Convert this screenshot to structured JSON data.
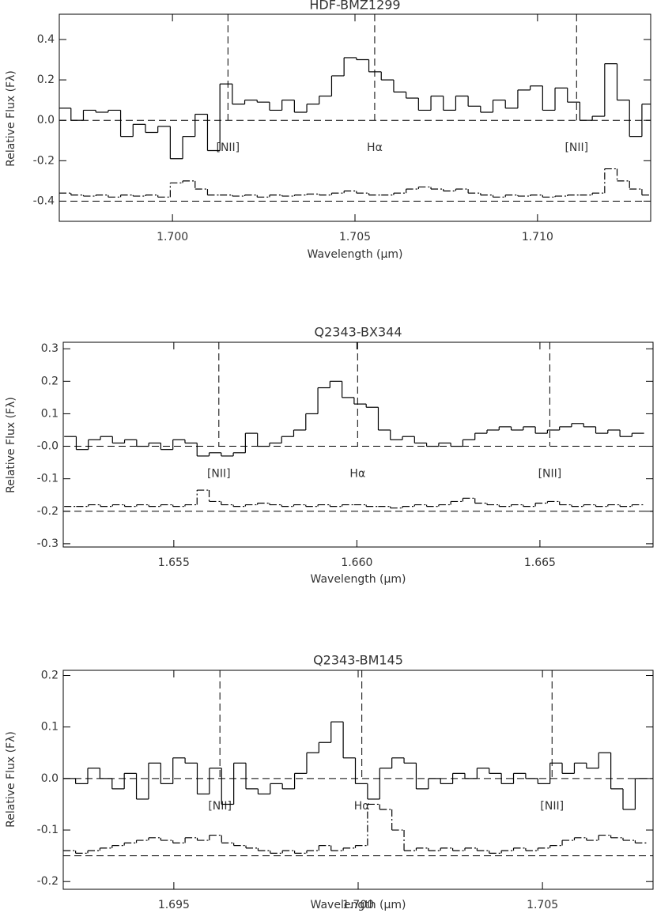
{
  "chart_data": [
    {
      "type": "line",
      "title": "HDF-BMZ1299",
      "xlabel": "Wavelength (μm)",
      "ylabel": "Relative Flux (Fλ)",
      "xlim": [
        1.6969,
        1.7131
      ],
      "ylim": [
        -0.5,
        0.525
      ],
      "xticks": [
        {
          "value": 1.7,
          "label": "1.700"
        },
        {
          "value": 1.705,
          "label": "1.705"
        },
        {
          "value": 1.71,
          "label": "1.710"
        }
      ],
      "yticks": [
        -0.4,
        -0.2,
        {
          "value": 0,
          "label": "0.0"
        },
        0.2,
        0.4
      ],
      "drawstyle": "steps",
      "x": [
        1.69705,
        1.69739,
        1.69773,
        1.69807,
        1.69841,
        1.69875,
        1.69909,
        1.69943,
        1.69977,
        1.70011,
        1.70045,
        1.70079,
        1.70113,
        1.70147,
        1.70181,
        1.70215,
        1.70249,
        1.70283,
        1.70317,
        1.70351,
        1.70385,
        1.70419,
        1.70453,
        1.70487,
        1.70521,
        1.70555,
        1.70589,
        1.70623,
        1.70657,
        1.70691,
        1.70725,
        1.70759,
        1.70793,
        1.70827,
        1.70861,
        1.70895,
        1.70929,
        1.70963,
        1.70997,
        1.71031,
        1.71065,
        1.71099,
        1.71133,
        1.71167,
        1.71201,
        1.71235,
        1.71269,
        1.71303
      ],
      "series": [
        {
          "color": "#000000",
          "line_style": "solid",
          "values": [
            0.06,
            0.0,
            0.05,
            0.04,
            0.05,
            -0.08,
            -0.02,
            -0.06,
            -0.03,
            -0.19,
            -0.08,
            0.03,
            -0.15,
            0.18,
            0.08,
            0.1,
            0.09,
            0.05,
            0.1,
            0.04,
            0.08,
            0.12,
            0.22,
            0.31,
            0.3,
            0.24,
            0.2,
            0.14,
            0.11,
            0.05,
            0.12,
            0.05,
            0.12,
            0.07,
            0.04,
            0.1,
            0.06,
            0.15,
            0.17,
            0.05,
            0.16,
            0.09,
            0.0,
            0.02,
            0.28,
            0.1,
            -0.08,
            0.08
          ]
        },
        {
          "color": "#000000",
          "line_style": "dashdot",
          "values": [
            -0.36,
            -0.37,
            -0.375,
            -0.37,
            -0.38,
            -0.37,
            -0.375,
            -0.37,
            -0.38,
            -0.31,
            -0.3,
            -0.34,
            -0.37,
            -0.37,
            -0.375,
            -0.37,
            -0.38,
            -0.37,
            -0.375,
            -0.37,
            -0.365,
            -0.37,
            -0.36,
            -0.35,
            -0.36,
            -0.37,
            -0.37,
            -0.36,
            -0.34,
            -0.33,
            -0.34,
            -0.35,
            -0.34,
            -0.36,
            -0.37,
            -0.38,
            -0.37,
            -0.375,
            -0.37,
            -0.38,
            -0.375,
            -0.37,
            -0.37,
            -0.36,
            -0.24,
            -0.3,
            -0.34,
            -0.37
          ]
        }
      ],
      "reference_lines": {
        "line_style": "dashed",
        "values": [
          0,
          -0.4
        ]
      },
      "markers": [
        {
          "x": 1.70152,
          "label": "[NII]"
        },
        {
          "x": 1.70554,
          "label": "Hα"
        },
        {
          "x": 1.71107,
          "label": "[NII]"
        }
      ]
    },
    {
      "type": "line",
      "title": "Q2343-BX344",
      "xlabel": "Wavelength (μm)",
      "ylabel": "Relative Flux (Fλ)",
      "xlim": [
        1.65198,
        1.66809
      ],
      "ylim": [
        -0.31,
        0.32
      ],
      "xticks": [
        {
          "value": 1.655,
          "label": "1.655"
        },
        {
          "value": 1.66,
          "label": "1.660"
        },
        {
          "value": 1.665,
          "label": "1.665"
        }
      ],
      "yticks": [
        -0.3,
        -0.2,
        -0.1,
        {
          "value": 0,
          "label": "-0.0"
        },
        0.1,
        0.2,
        0.3
      ],
      "drawstyle": "steps",
      "x": [
        1.65217,
        1.6525,
        1.65283,
        1.65316,
        1.65349,
        1.65382,
        1.65415,
        1.65448,
        1.65481,
        1.65514,
        1.65547,
        1.6558,
        1.65613,
        1.65646,
        1.65679,
        1.65712,
        1.65745,
        1.65778,
        1.65811,
        1.65844,
        1.65877,
        1.6591,
        1.65943,
        1.65976,
        1.66009,
        1.66042,
        1.66075,
        1.66108,
        1.66141,
        1.66174,
        1.66207,
        1.6624,
        1.66273,
        1.66306,
        1.66339,
        1.66372,
        1.66405,
        1.66438,
        1.66471,
        1.66504,
        1.66537,
        1.6657,
        1.66603,
        1.66636,
        1.66669,
        1.66702,
        1.66735,
        1.66768
      ],
      "series": [
        {
          "color": "#000000",
          "line_style": "solid",
          "values": [
            0.03,
            -0.01,
            0.02,
            0.03,
            0.01,
            0.02,
            0.0,
            0.01,
            -0.01,
            0.02,
            0.01,
            -0.03,
            -0.02,
            -0.03,
            -0.02,
            0.04,
            0.0,
            0.01,
            0.03,
            0.05,
            0.1,
            0.18,
            0.2,
            0.15,
            0.13,
            0.12,
            0.05,
            0.02,
            0.03,
            0.01,
            0.0,
            0.01,
            0.0,
            0.02,
            0.04,
            0.05,
            0.06,
            0.05,
            0.06,
            0.04,
            0.05,
            0.06,
            0.07,
            0.06,
            0.04,
            0.05,
            0.03,
            0.04
          ]
        },
        {
          "color": "#000000",
          "line_style": "dashdot",
          "values": [
            -0.185,
            -0.185,
            -0.18,
            -0.185,
            -0.18,
            -0.185,
            -0.18,
            -0.185,
            -0.18,
            -0.185,
            -0.18,
            -0.135,
            -0.17,
            -0.18,
            -0.185,
            -0.18,
            -0.175,
            -0.18,
            -0.185,
            -0.18,
            -0.185,
            -0.18,
            -0.185,
            -0.18,
            -0.18,
            -0.185,
            -0.185,
            -0.19,
            -0.185,
            -0.18,
            -0.185,
            -0.18,
            -0.17,
            -0.16,
            -0.175,
            -0.18,
            -0.185,
            -0.18,
            -0.185,
            -0.175,
            -0.17,
            -0.18,
            -0.185,
            -0.18,
            -0.185,
            -0.18,
            -0.185,
            -0.18
          ]
        }
      ],
      "reference_lines": {
        "line_style": "dashed",
        "values": [
          0,
          -0.2
        ]
      },
      "markers": [
        {
          "x": 1.65623,
          "label": "[NII]"
        },
        {
          "x": 1.66002,
          "label": "Hα"
        },
        {
          "x": 1.66527,
          "label": "[NII]"
        }
      ]
    },
    {
      "type": "line",
      "title": "Q2343-BM145",
      "xlabel": "Wavelength (μm)",
      "ylabel": "Relative Flux (Fλ)",
      "xlim": [
        1.692,
        1.708
      ],
      "ylim": [
        -0.215,
        0.21
      ],
      "xticks": [
        {
          "value": 1.695,
          "label": "1.695"
        },
        {
          "value": 1.7,
          "label": "1.700"
        },
        {
          "value": 1.705,
          "label": "1.705"
        }
      ],
      "yticks": [
        -0.2,
        -0.1,
        {
          "value": 0,
          "label": "0.0"
        },
        0.1,
        0.2
      ],
      "drawstyle": "steps",
      "x": [
        1.69217,
        1.6925,
        1.69283,
        1.69316,
        1.69349,
        1.69382,
        1.69415,
        1.69448,
        1.69481,
        1.69514,
        1.69547,
        1.6958,
        1.69613,
        1.69646,
        1.69679,
        1.69712,
        1.69745,
        1.69778,
        1.69811,
        1.69844,
        1.69877,
        1.6991,
        1.69943,
        1.69976,
        1.70009,
        1.70042,
        1.70075,
        1.70108,
        1.70141,
        1.70174,
        1.70207,
        1.7024,
        1.70273,
        1.70306,
        1.70339,
        1.70372,
        1.70405,
        1.70438,
        1.70471,
        1.70504,
        1.70537,
        1.7057,
        1.70603,
        1.70636,
        1.70669,
        1.70702,
        1.70735,
        1.70768
      ],
      "series": [
        {
          "color": "#000000",
          "line_style": "solid",
          "values": [
            0.0,
            -0.01,
            0.02,
            0.0,
            -0.02,
            0.01,
            -0.04,
            0.03,
            -0.01,
            0.04,
            0.03,
            -0.03,
            0.02,
            -0.05,
            0.03,
            -0.02,
            -0.03,
            -0.01,
            -0.02,
            0.01,
            0.05,
            0.07,
            0.11,
            0.04,
            -0.01,
            -0.04,
            0.02,
            0.04,
            0.03,
            -0.02,
            0.0,
            -0.01,
            0.01,
            0.0,
            0.02,
            0.01,
            -0.01,
            0.01,
            0.0,
            -0.01,
            0.03,
            0.01,
            0.03,
            0.02,
            0.05,
            -0.02,
            -0.06,
            0.0
          ]
        },
        {
          "color": "#000000",
          "line_style": "dashdot",
          "values": [
            -0.14,
            -0.145,
            -0.14,
            -0.135,
            -0.13,
            -0.125,
            -0.12,
            -0.115,
            -0.12,
            -0.125,
            -0.115,
            -0.12,
            -0.11,
            -0.125,
            -0.13,
            -0.135,
            -0.14,
            -0.145,
            -0.14,
            -0.145,
            -0.14,
            -0.13,
            -0.14,
            -0.135,
            -0.13,
            -0.05,
            -0.06,
            -0.1,
            -0.14,
            -0.135,
            -0.14,
            -0.135,
            -0.14,
            -0.135,
            -0.14,
            -0.145,
            -0.14,
            -0.135,
            -0.14,
            -0.135,
            -0.13,
            -0.12,
            -0.115,
            -0.12,
            -0.11,
            -0.115,
            -0.12,
            -0.125
          ]
        }
      ],
      "reference_lines": {
        "line_style": "dashed",
        "values": [
          0,
          -0.15
        ]
      },
      "markers": [
        {
          "x": 1.69625,
          "label": "[NII]"
        },
        {
          "x": 1.7001,
          "label": "Hα"
        },
        {
          "x": 1.70526,
          "label": "[NII]"
        }
      ]
    }
  ]
}
